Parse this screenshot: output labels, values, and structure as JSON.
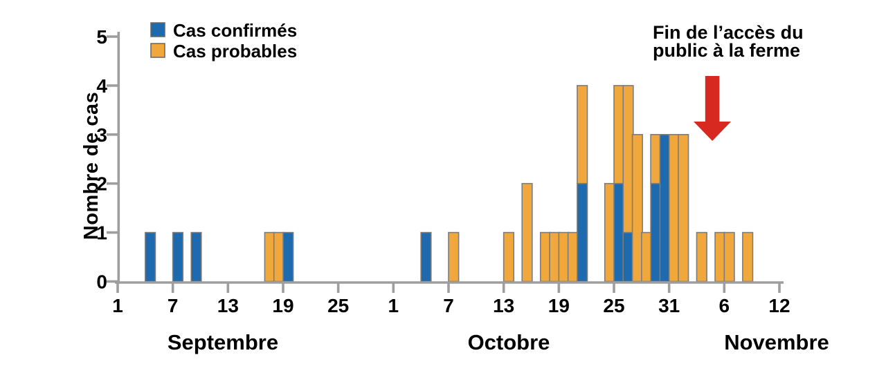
{
  "chart_data": {
    "type": "bar",
    "stacked": true,
    "title": "",
    "ylabel": "Nombre de cas",
    "xlabel": "",
    "ylim": [
      0,
      5
    ],
    "yticks": [
      0,
      1,
      2,
      3,
      4,
      5
    ],
    "grid": false,
    "legend_position": "top-left",
    "colors": {
      "confirmed": "#1e6aae",
      "probable": "#f0a73c",
      "bar_outline": "#7c7c7c",
      "axis": "#9e9e9e",
      "text": "#000000",
      "arrow_red": "#d7291f"
    },
    "series": [
      {
        "key": "confirmed",
        "name": "Cas confirmés",
        "color": "#1e6aae"
      },
      {
        "key": "probable",
        "name": "Cas probables",
        "color": "#f0a73c"
      }
    ],
    "months": [
      {
        "label": "Septembre",
        "days": 30,
        "tick_days": [
          1,
          7,
          13,
          19,
          25
        ]
      },
      {
        "label": "Octobre",
        "days": 31,
        "tick_days": [
          1,
          7,
          13,
          19,
          25,
          31
        ]
      },
      {
        "label": "Novembre",
        "days": 12,
        "tick_days": [
          6,
          12
        ]
      }
    ],
    "bars": [
      {
        "month": "Septembre",
        "day": 4,
        "confirmed": 1,
        "probable": 0
      },
      {
        "month": "Septembre",
        "day": 7,
        "confirmed": 1,
        "probable": 0
      },
      {
        "month": "Septembre",
        "day": 9,
        "confirmed": 1,
        "probable": 0
      },
      {
        "month": "Septembre",
        "day": 17,
        "confirmed": 0,
        "probable": 1
      },
      {
        "month": "Septembre",
        "day": 18,
        "confirmed": 0,
        "probable": 1
      },
      {
        "month": "Septembre",
        "day": 19,
        "confirmed": 1,
        "probable": 0
      },
      {
        "month": "Octobre",
        "day": 4,
        "confirmed": 1,
        "probable": 0
      },
      {
        "month": "Octobre",
        "day": 7,
        "confirmed": 0,
        "probable": 1
      },
      {
        "month": "Octobre",
        "day": 13,
        "confirmed": 0,
        "probable": 1
      },
      {
        "month": "Octobre",
        "day": 15,
        "confirmed": 0,
        "probable": 2
      },
      {
        "month": "Octobre",
        "day": 17,
        "confirmed": 0,
        "probable": 1
      },
      {
        "month": "Octobre",
        "day": 18,
        "confirmed": 0,
        "probable": 1
      },
      {
        "month": "Octobre",
        "day": 19,
        "confirmed": 0,
        "probable": 1
      },
      {
        "month": "Octobre",
        "day": 20,
        "confirmed": 0,
        "probable": 1
      },
      {
        "month": "Octobre",
        "day": 21,
        "confirmed": 2,
        "probable": 2
      },
      {
        "month": "Octobre",
        "day": 24,
        "confirmed": 0,
        "probable": 2
      },
      {
        "month": "Octobre",
        "day": 25,
        "confirmed": 2,
        "probable": 2
      },
      {
        "month": "Octobre",
        "day": 26,
        "confirmed": 1,
        "probable": 3
      },
      {
        "month": "Octobre",
        "day": 27,
        "confirmed": 0,
        "probable": 3
      },
      {
        "month": "Octobre",
        "day": 28,
        "confirmed": 0,
        "probable": 1
      },
      {
        "month": "Octobre",
        "day": 29,
        "confirmed": 2,
        "probable": 1
      },
      {
        "month": "Octobre",
        "day": 30,
        "confirmed": 3,
        "probable": 0
      },
      {
        "month": "Octobre",
        "day": 31,
        "confirmed": 0,
        "probable": 3
      },
      {
        "month": "Novembre",
        "day": 1,
        "confirmed": 0,
        "probable": 3
      },
      {
        "month": "Novembre",
        "day": 3,
        "confirmed": 0,
        "probable": 1
      },
      {
        "month": "Novembre",
        "day": 5,
        "confirmed": 0,
        "probable": 1
      },
      {
        "month": "Novembre",
        "day": 6,
        "confirmed": 0,
        "probable": 1
      },
      {
        "month": "Novembre",
        "day": 8,
        "confirmed": 0,
        "probable": 1
      }
    ],
    "annotation": {
      "lines": [
        "Fin de l’accès du",
        "public à la ferme"
      ],
      "arrow_color": "#d7291f",
      "arrow_month": "Novembre",
      "arrow_day": 4.7
    }
  }
}
